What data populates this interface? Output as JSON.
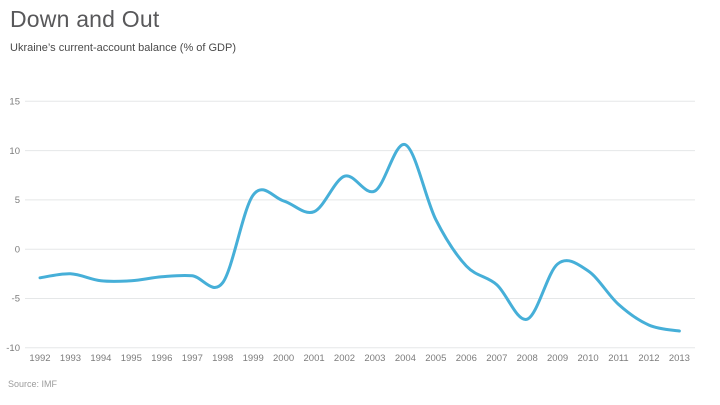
{
  "header": {
    "title": "Down and Out",
    "subtitle": "Ukraine’s current-account balance (% of GDP)"
  },
  "footer": {
    "source": "Source: IMF"
  },
  "colors": {
    "line": "#46afd8",
    "grid": "#e5e7e8",
    "title_text": "#58585a",
    "subtitle_text": "#4a4a4a",
    "tick_text": "#7c7c7c",
    "source_text": "#9b9b9b",
    "background": "#ffffff"
  },
  "chart_data": {
    "type": "line",
    "title": "Down and Out",
    "subtitle": "Ukraine’s current-account balance (% of GDP)",
    "source": "Source: IMF",
    "x": [
      "1992",
      "1993",
      "1994",
      "1995",
      "1996",
      "1997",
      "1998",
      "1999",
      "2000",
      "2001",
      "2002",
      "2003",
      "2004",
      "2005",
      "2006",
      "2007",
      "2008",
      "2009",
      "2010",
      "2011",
      "2012",
      "2013"
    ],
    "series": [
      {
        "name": "Ukraine current-account balance (% of GDP)",
        "values": [
          -2.9,
          -2.5,
          -3.2,
          -3.2,
          -2.8,
          -2.7,
          -3.4,
          5.5,
          4.9,
          3.8,
          7.4,
          5.9,
          10.6,
          3.0,
          -1.7,
          -3.6,
          -7.1,
          -1.5,
          -2.2,
          -5.6,
          -7.7,
          -8.3
        ]
      }
    ],
    "ylim": [
      -10,
      15
    ],
    "yticks": [
      15,
      10,
      5,
      0,
      -5,
      -10
    ],
    "xlabel": "",
    "ylabel": "",
    "grid": "horizontal",
    "legend": "none",
    "line_style": "smooth"
  }
}
